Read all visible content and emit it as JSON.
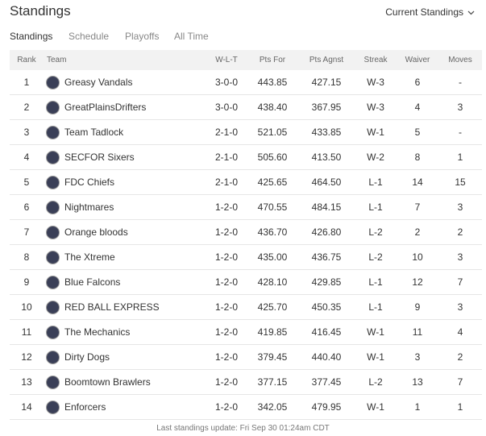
{
  "header": {
    "title": "Standings",
    "dropdown": "Current Standings"
  },
  "tabs": [
    "Standings",
    "Schedule",
    "Playoffs",
    "All Time"
  ],
  "table": {
    "columns": [
      "Rank",
      "Team",
      "W-L-T",
      "Pts For",
      "Pts Agnst",
      "Streak",
      "Waiver",
      "Moves"
    ],
    "rows": [
      [
        "1",
        "Greasy Vandals",
        "3-0-0",
        "443.85",
        "427.15",
        "W-3",
        "6",
        "-"
      ],
      [
        "2",
        "GreatPlainsDrifters",
        "3-0-0",
        "438.40",
        "367.95",
        "W-3",
        "4",
        "3"
      ],
      [
        "3",
        "Team Tadlock",
        "2-1-0",
        "521.05",
        "433.85",
        "W-1",
        "5",
        "-"
      ],
      [
        "4",
        "SECFOR Sixers",
        "2-1-0",
        "505.60",
        "413.50",
        "W-2",
        "8",
        "1"
      ],
      [
        "5",
        "FDC Chiefs",
        "2-1-0",
        "425.65",
        "464.50",
        "L-1",
        "14",
        "15"
      ],
      [
        "6",
        "Nightmares",
        "1-2-0",
        "470.55",
        "484.15",
        "L-1",
        "7",
        "3"
      ],
      [
        "7",
        "Orange bloods",
        "1-2-0",
        "436.70",
        "426.80",
        "L-2",
        "2",
        "2"
      ],
      [
        "8",
        "The Xtreme",
        "1-2-0",
        "435.00",
        "436.75",
        "L-2",
        "10",
        "3"
      ],
      [
        "9",
        "Blue Falcons",
        "1-2-0",
        "428.10",
        "429.85",
        "L-1",
        "12",
        "7"
      ],
      [
        "10",
        "RED BALL EXPRESS",
        "1-2-0",
        "425.70",
        "450.35",
        "L-1",
        "9",
        "3"
      ],
      [
        "11",
        "The Mechanics",
        "1-2-0",
        "419.85",
        "416.45",
        "W-1",
        "11",
        "4"
      ],
      [
        "12",
        "Dirty Dogs",
        "1-2-0",
        "379.45",
        "440.40",
        "W-1",
        "3",
        "2"
      ],
      [
        "13",
        "Boomtown Brawlers",
        "1-2-0",
        "377.15",
        "377.45",
        "L-2",
        "13",
        "7"
      ],
      [
        "14",
        "Enforcers",
        "1-2-0",
        "342.05",
        "479.95",
        "W-1",
        "1",
        "1"
      ]
    ]
  },
  "footer": "Last standings update: Fri Sep 30 01:24am CDT"
}
